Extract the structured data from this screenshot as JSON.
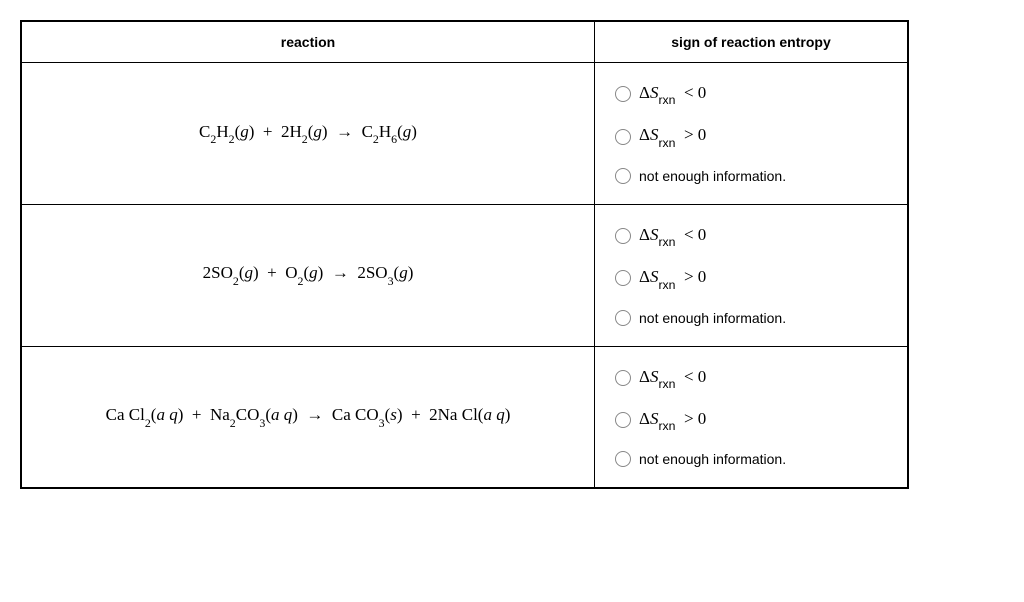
{
  "headers": {
    "reaction": "reaction",
    "sign": "sign of reaction entropy"
  },
  "options": {
    "lt": "< 0",
    "gt": "> 0",
    "nei": "not enough information."
  },
  "rows": [
    {
      "reaction_html": "C<span class='sub'>2</span>H<span class='sub'>2</span>(<i>g</i>) &nbsp;+&nbsp; 2H<span class='sub'>2</span>(<i>g</i>) &nbsp;&#8594;&nbsp; C<span class='sub'>2</span>H<span class='sub'>6</span>(<i>g</i>)"
    },
    {
      "reaction_html": "2SO<span class='sub'>2</span>(<i>g</i>) &nbsp;+&nbsp; O<span class='sub'>2</span>(<i>g</i>) &nbsp;&#8594;&nbsp; 2SO<span class='sub'>3</span>(<i>g</i>)"
    },
    {
      "reaction_html": "Ca Cl<span class='sub'>2</span>(<i>a q</i>) &nbsp;+&nbsp; Na<span class='sub'>2</span>CO<span class='sub'>3</span>(<i>a q</i>) &nbsp;&#8594;&nbsp; Ca CO<span class='sub'>3</span>(<i>s</i>) &nbsp;+&nbsp; 2Na Cl(<i>a q</i>)"
    }
  ]
}
